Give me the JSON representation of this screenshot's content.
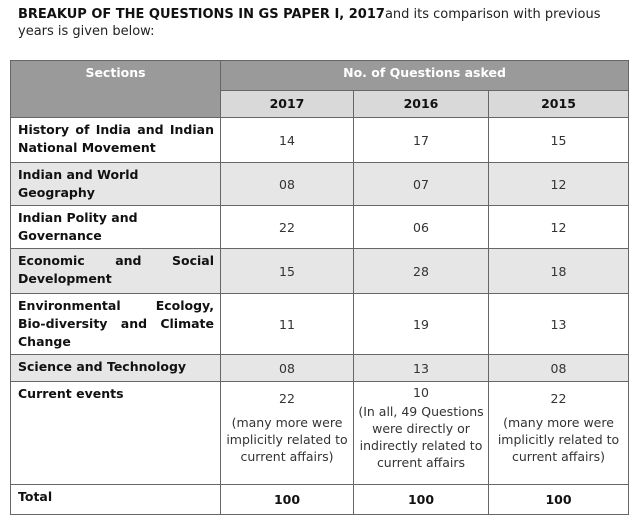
{
  "intro": {
    "bold": "BREAKUP OF THE QUESTIONS IN GS PAPER I, 2017",
    "rest": "and its comparison with previous years is given below:"
  },
  "table": {
    "sections_header": "Sections",
    "questions_header": "No. of Questions asked",
    "years": [
      "2017",
      "2016",
      "2015"
    ],
    "rows": [
      {
        "section": "History of India and Indian National Movement",
        "v2017": "14",
        "v2016": "17",
        "v2015": "15"
      },
      {
        "section": "Indian and World Geography",
        "v2017": "08",
        "v2016": "07",
        "v2015": "12"
      },
      {
        "section": "Indian Polity and Governance",
        "v2017": "22",
        "v2016": "06",
        "v2015": "12"
      },
      {
        "section": "Economic and Social Development",
        "v2017": "15",
        "v2016": "28",
        "v2015": "18"
      },
      {
        "section": "Environmental Ecology, Bio-diversity and Climate Change",
        "v2017": "11",
        "v2016": "19",
        "v2015": "13"
      },
      {
        "section": "Science and Technology",
        "v2017": "08",
        "v2016": "13",
        "v2015": "08"
      }
    ],
    "current": {
      "section": "Current events",
      "v2017": "22",
      "note2017": "(many more were implicitly related to current affairs)",
      "v2016": "10",
      "note2016": "(In all, 49 Questions were directly or indirectly related to current affairs",
      "v2015": "22",
      "note2015": "(many more were implicitly related to current affairs)"
    },
    "total": {
      "label": "Total",
      "v2017": "100",
      "v2016": "100",
      "v2015": "100"
    }
  }
}
